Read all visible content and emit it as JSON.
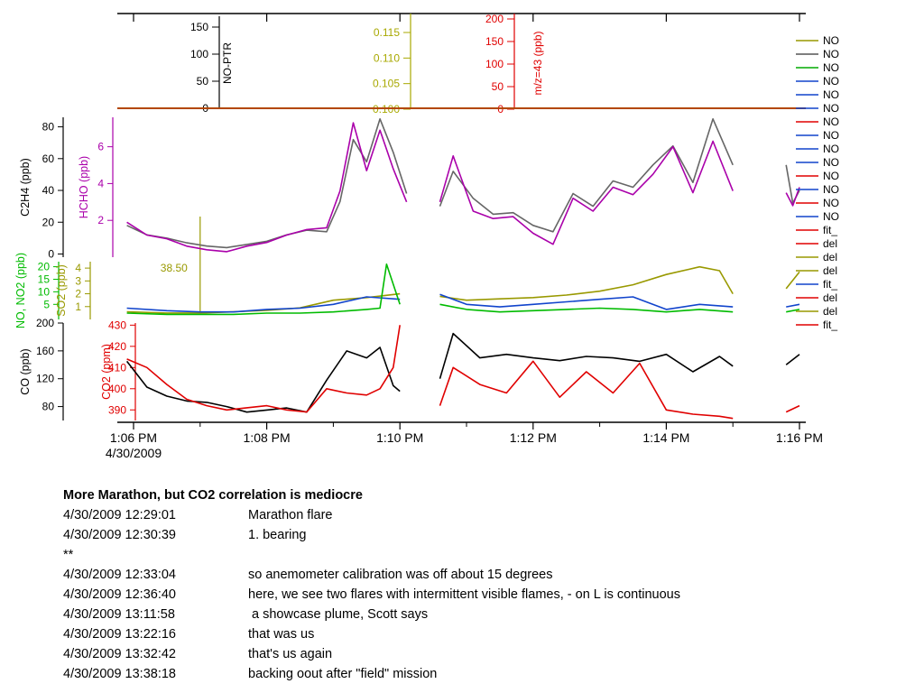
{
  "chart_data": {
    "type": "line",
    "time_axis": {
      "ticks": [
        "1:06 PM",
        "1:08 PM",
        "1:10 PM",
        "1:12 PM",
        "1:14 PM",
        "1:16 PM"
      ],
      "date_label": "4/30/2009",
      "range": [
        "13:05:50",
        "13:16:10"
      ]
    },
    "panels": [
      {
        "id": "ptr",
        "axes": [
          {
            "label": "NO-PTR",
            "ticks": [
              0,
              50,
              100,
              150
            ],
            "color": "#000000"
          },
          {
            "label": "",
            "ticks": [
              0.1,
              0.105,
              0.11,
              0.115
            ],
            "color": "#a8a800"
          },
          {
            "label": "m/z=43 (ppb)",
            "ticks": [
              0,
              50,
              100,
              150,
              200
            ],
            "color": "#e00000"
          }
        ],
        "series": [
          {
            "label": "",
            "color": "#b34700",
            "x_min": [
              6,
              10.3
            ],
            "y": [
              0,
              0
            ]
          }
        ]
      },
      {
        "id": "c2h4_hcho",
        "axes": [
          {
            "label": "C2H4 (ppb)",
            "ticks": [
              0,
              20,
              40,
              60,
              80
            ],
            "ylim": [
              -2,
              86
            ],
            "color": "#000000"
          },
          {
            "label": "HCHO (ppb)",
            "ticks": [
              2,
              4,
              6
            ],
            "ylim": [
              0,
              7.6
            ],
            "color": "#aa00aa"
          }
        ],
        "series": [
          {
            "label": "C2H4",
            "color": "#666666",
            "axis": 0,
            "segments": [
              {
                "x_min": [
                  5.9,
                  6.2,
                  6.5,
                  6.8,
                  7.1,
                  7.4,
                  7.7,
                  8.0,
                  8.3,
                  8.6,
                  8.9,
                  9.1,
                  9.3,
                  9.5,
                  9.7,
                  9.9,
                  10.1
                ],
                "y": [
                  18,
                  12,
                  10,
                  7,
                  5,
                  4,
                  6,
                  8,
                  12,
                  15,
                  14,
                  33,
                  72,
                  58,
                  85,
                  64,
                  38
                ]
              },
              {
                "x_min": [
                  10.6,
                  10.8,
                  11.1,
                  11.4,
                  11.7,
                  12.0,
                  12.3,
                  12.6,
                  12.9,
                  13.2,
                  13.5,
                  13.8,
                  14.1,
                  14.4,
                  14.7,
                  15.0
                ],
                "y": [
                  30,
                  52,
                  35,
                  25,
                  26,
                  18,
                  14,
                  38,
                  30,
                  46,
                  42,
                  56,
                  68,
                  45,
                  85,
                  56
                ]
              },
              {
                "x_min": [
                  15.8,
                  15.9,
                  16.0
                ],
                "y": [
                  56,
                  32,
                  40
                ]
              }
            ]
          },
          {
            "label": "HCHO",
            "color": "#aa00aa",
            "axis": 1,
            "segments": [
              {
                "x_min": [
                  5.9,
                  6.2,
                  6.5,
                  6.8,
                  7.1,
                  7.4,
                  7.7,
                  8.0,
                  8.3,
                  8.6,
                  8.9,
                  9.1,
                  9.3,
                  9.5,
                  9.7,
                  9.9,
                  10.1
                ],
                "y": [
                  1.9,
                  1.2,
                  1.0,
                  0.6,
                  0.4,
                  0.3,
                  0.6,
                  0.8,
                  1.2,
                  1.5,
                  1.6,
                  3.6,
                  7.3,
                  4.7,
                  6.9,
                  4.8,
                  3.0
                ]
              },
              {
                "x_min": [
                  10.6,
                  10.8,
                  11.1,
                  11.4,
                  11.7,
                  12.0,
                  12.3,
                  12.6,
                  12.9,
                  13.2,
                  13.5,
                  13.8,
                  14.1,
                  14.4,
                  14.7,
                  15.0
                ],
                "y": [
                  3.0,
                  5.5,
                  2.5,
                  2.1,
                  2.2,
                  1.3,
                  0.7,
                  3.2,
                  2.5,
                  3.8,
                  3.4,
                  4.5,
                  6.0,
                  3.5,
                  6.3,
                  3.6
                ]
              },
              {
                "x_min": [
                  15.8,
                  15.9,
                  16.0
                ],
                "y": [
                  3.5,
                  2.8,
                  3.8
                ]
              }
            ]
          }
        ]
      },
      {
        "id": "no_no2_so2",
        "axes": [
          {
            "label": "NO, NO2 (ppb)",
            "ticks": [
              5,
              10,
              15,
              20
            ],
            "ylim": [
              -1,
              22
            ],
            "color": "#00bb00"
          },
          {
            "label": "SO2 (ppb)",
            "ticks": [
              1,
              2,
              3,
              4
            ],
            "ylim": [
              0,
              4.5
            ],
            "color": "#999900"
          }
        ],
        "marker": {
          "label": "38.50",
          "x_min": 7.0,
          "color": "#999900"
        },
        "series": [
          {
            "label": "SO2",
            "color": "#999900",
            "axis": 1,
            "segments": [
              {
                "x_min": [
                  5.9,
                  6.5,
                  7.0,
                  7.5,
                  8.0,
                  8.5,
                  9.0,
                  9.5,
                  10.0
                ],
                "y": [
                  0.6,
                  0.5,
                  0.5,
                  0.6,
                  0.7,
                  0.9,
                  1.5,
                  1.7,
                  2.0
                ]
              },
              {
                "x_min": [
                  10.6,
                  11.0,
                  11.5,
                  12.0,
                  12.5,
                  13.0,
                  13.5,
                  14.0,
                  14.5,
                  14.8,
                  15.0
                ],
                "y": [
                  1.8,
                  1.5,
                  1.6,
                  1.7,
                  1.9,
                  2.2,
                  2.7,
                  3.5,
                  4.1,
                  3.8,
                  2.0
                ]
              },
              {
                "x_min": [
                  15.8,
                  16.0
                ],
                "y": [
                  2.4,
                  3.7
                ]
              }
            ]
          },
          {
            "label": "NO2",
            "color": "#1144cc",
            "axis": 0,
            "segments": [
              {
                "x_min": [
                  5.9,
                  6.5,
                  7.0,
                  7.5,
                  8.0,
                  8.5,
                  9.0,
                  9.5,
                  10.0
                ],
                "y": [
                  3.5,
                  2.5,
                  2.0,
                  2.0,
                  3.0,
                  3.5,
                  5.0,
                  8.0,
                  7.0
                ]
              },
              {
                "x_min": [
                  10.6,
                  11.0,
                  11.5,
                  12.0,
                  12.5,
                  13.0,
                  13.5,
                  14.0,
                  14.5,
                  15.0
                ],
                "y": [
                  9.0,
                  5.0,
                  4.0,
                  5.0,
                  6.0,
                  7.0,
                  8.0,
                  3.0,
                  5.0,
                  4.0
                ]
              },
              {
                "x_min": [
                  15.8,
                  16.0
                ],
                "y": [
                  4.0,
                  5.0
                ]
              }
            ]
          },
          {
            "label": "NO",
            "color": "#00bb00",
            "axis": 0,
            "segments": [
              {
                "x_min": [
                  5.9,
                  6.5,
                  7.0,
                  7.5,
                  8.0,
                  8.5,
                  9.0,
                  9.5,
                  9.7,
                  9.8,
                  10.0
                ],
                "y": [
                  1.5,
                  1.0,
                  1.0,
                  1.0,
                  1.5,
                  1.5,
                  2.0,
                  3.0,
                  3.5,
                  21.0,
                  5.0
                ]
              },
              {
                "x_min": [
                  10.6,
                  11.0,
                  11.5,
                  12.0,
                  12.5,
                  13.0,
                  13.5,
                  14.0,
                  14.5,
                  15.0
                ],
                "y": [
                  5.0,
                  3.0,
                  2.0,
                  2.5,
                  3.0,
                  3.5,
                  3.0,
                  2.0,
                  3.0,
                  2.0
                ]
              },
              {
                "x_min": [
                  15.8,
                  16.0
                ],
                "y": [
                  2.0,
                  3.0
                ]
              }
            ]
          }
        ]
      },
      {
        "id": "co_co2",
        "axes": [
          {
            "label": "CO (ppb)",
            "ticks": [
              80,
              120,
              160,
              200
            ],
            "ylim": [
              60,
              200
            ],
            "color": "#000000"
          },
          {
            "label": "CO2 (ppm)",
            "ticks": [
              390,
              400,
              410,
              420,
              430
            ],
            "ylim": [
              385,
              431
            ],
            "color": "#e00000"
          }
        ],
        "series": [
          {
            "label": "CO",
            "color": "#000000",
            "axis": 0,
            "segments": [
              {
                "x_min": [
                  5.9,
                  6.2,
                  6.5,
                  6.8,
                  7.1,
                  7.4,
                  7.7,
                  8.0,
                  8.3,
                  8.6,
                  8.9,
                  9.2,
                  9.5,
                  9.7,
                  9.9,
                  10.0
                ],
                "y": [
                  145,
                  108,
                  95,
                  88,
                  86,
                  80,
                  72,
                  75,
                  78,
                  72,
                  118,
                  160,
                  150,
                  165,
                  110,
                  102
                ]
              },
              {
                "x_min": [
                  10.6,
                  10.8,
                  11.2,
                  11.6,
                  12.0,
                  12.4,
                  12.8,
                  13.2,
                  13.6,
                  14.0,
                  14.4,
                  14.8,
                  15.0
                ],
                "y": [
                  120,
                  185,
                  150,
                  155,
                  150,
                  146,
                  152,
                  150,
                  145,
                  155,
                  130,
                  152,
                  138
                ]
              },
              {
                "x_min": [
                  15.8,
                  16.0
                ],
                "y": [
                  140,
                  155
                ]
              }
            ]
          },
          {
            "label": "CO2",
            "color": "#e00000",
            "axis": 1,
            "segments": [
              {
                "x_min": [
                  5.9,
                  6.2,
                  6.5,
                  6.8,
                  7.1,
                  7.4,
                  7.7,
                  8.0,
                  8.3,
                  8.6,
                  8.9,
                  9.2,
                  9.5,
                  9.7,
                  9.9,
                  10.0
                ],
                "y": [
                  414,
                  410,
                  402,
                  395,
                  392,
                  390,
                  391,
                  392,
                  390,
                  389,
                  400,
                  398,
                  397,
                  400,
                  410,
                  430
                ]
              },
              {
                "x_min": [
                  10.6,
                  10.8,
                  11.2,
                  11.6,
                  12.0,
                  12.4,
                  12.8,
                  13.2,
                  13.6,
                  14.0,
                  14.4,
                  14.8,
                  15.0
                ],
                "y": [
                  392,
                  410,
                  402,
                  398,
                  413,
                  396,
                  408,
                  398,
                  412,
                  390,
                  388,
                  387,
                  386
                ]
              },
              {
                "x_min": [
                  15.8,
                  16.0
                ],
                "y": [
                  389,
                  392
                ]
              }
            ]
          }
        ]
      }
    ],
    "legend": {
      "placement": "right",
      "entries": [
        {
          "label": "NO",
          "color": "#999900"
        },
        {
          "label": "NO",
          "color": "#555555"
        },
        {
          "label": "NO",
          "color": "#00aa00"
        },
        {
          "label": "NO",
          "color": "#1144cc"
        },
        {
          "label": "NO",
          "color": "#1144cc"
        },
        {
          "label": "NO",
          "color": "#1144cc"
        },
        {
          "label": "NO",
          "color": "#e00000"
        },
        {
          "label": "NO",
          "color": "#1144cc"
        },
        {
          "label": "NO",
          "color": "#1144cc"
        },
        {
          "label": "NO",
          "color": "#1144cc"
        },
        {
          "label": "NO",
          "color": "#e00000"
        },
        {
          "label": "NO",
          "color": "#1144cc"
        },
        {
          "label": "NO",
          "color": "#e00000"
        },
        {
          "label": "NO",
          "color": "#1144cc"
        },
        {
          "label": "fit_",
          "color": "#e00000"
        },
        {
          "label": "del",
          "color": "#e00000"
        },
        {
          "label": "del",
          "color": "#999900"
        },
        {
          "label": "del",
          "color": "#999900"
        },
        {
          "label": "fit_",
          "color": "#1144cc"
        },
        {
          "label": "del",
          "color": "#e00000"
        },
        {
          "label": "del",
          "color": "#999900"
        },
        {
          "label": "fit_",
          "color": "#e00000"
        }
      ]
    }
  },
  "notes": {
    "title": "More Marathon, but CO2 correlation is mediocre",
    "rows": [
      {
        "time": "4/30/2009 12:29:01",
        "text": "Marathon flare"
      },
      {
        "time": "4/30/2009 12:30:39",
        "text": "1. bearing"
      },
      {
        "time": "**",
        "text": ""
      },
      {
        "time": "4/30/2009 12:33:04",
        "text": "so anemometer calibration was off about 15 degrees"
      },
      {
        "time": "4/30/2009 12:36:40",
        "text": "here, we see two flares with intermittent visible flames, - on L is continuous"
      },
      {
        "time": "4/30/2009 13:11:58",
        "text": " a showcase plume, Scott says"
      },
      {
        "time": "4/30/2009 13:22:16",
        "text": "that was us"
      },
      {
        "time": "4/30/2009 13:32:42",
        "text": "that's us again"
      },
      {
        "time": "4/30/2009 13:38:18",
        "text": "backing oout after \"field\" mission"
      }
    ]
  }
}
